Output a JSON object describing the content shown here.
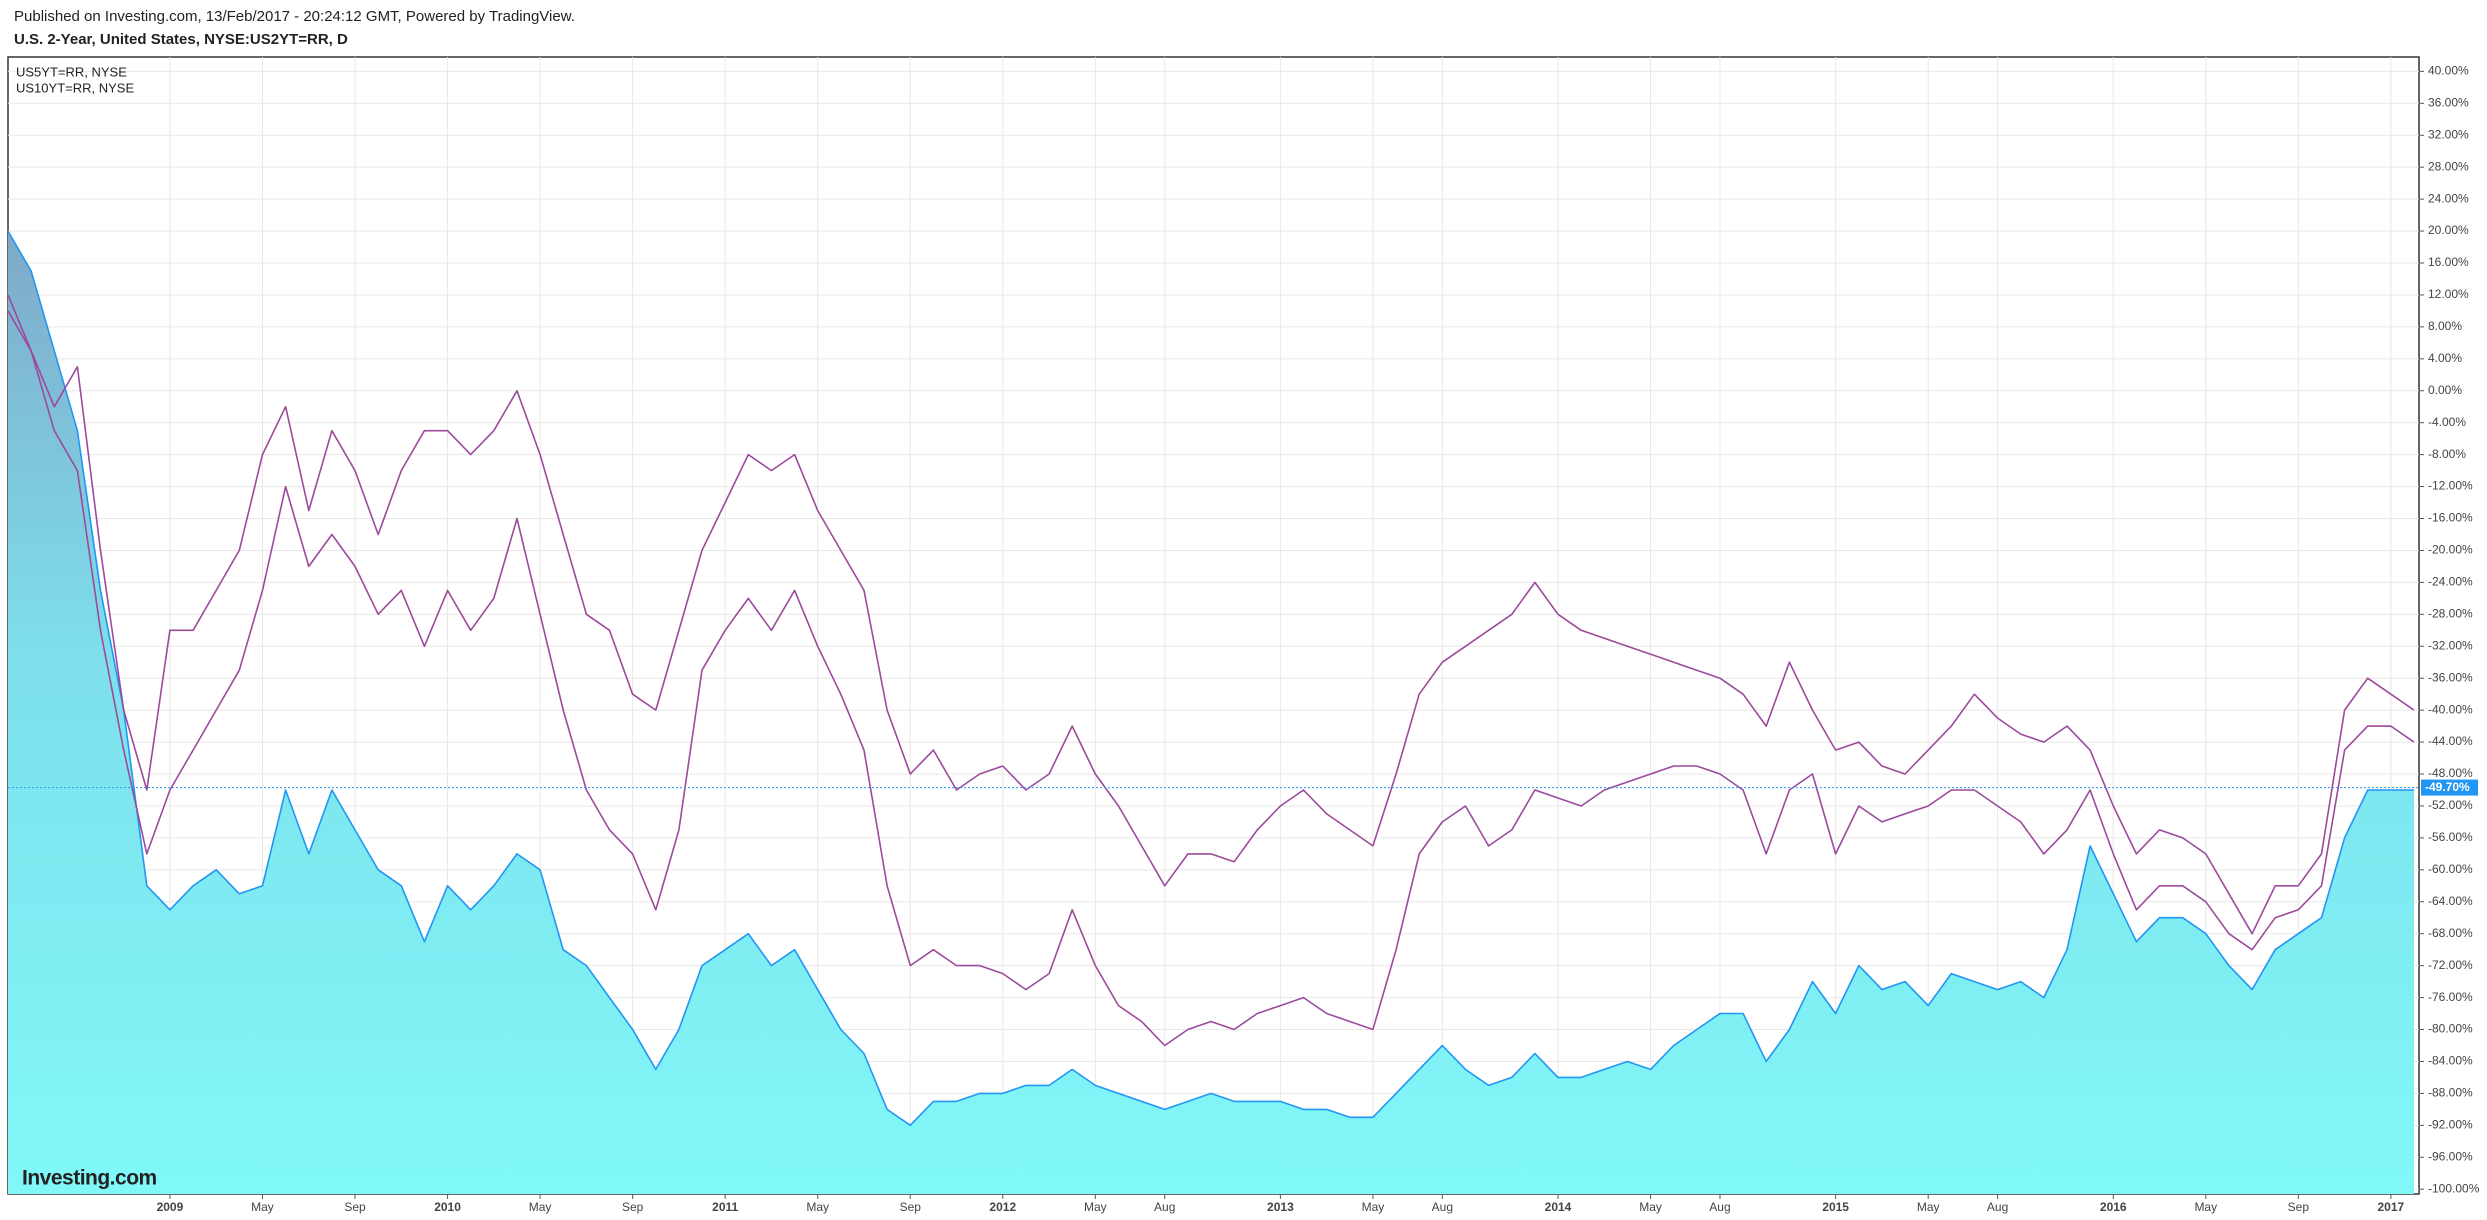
{
  "published": "Published on Investing.com, 13/Feb/2017 - 20:24:12 GMT, Powered by TradingView.",
  "logo": "Investing.com",
  "chart_data": {
    "type": "line",
    "title": "U.S. 2-Year, United States, NYSE:US2YT=RR, D",
    "x": [
      "2008-06",
      "2008-07",
      "2008-08",
      "2008-09",
      "2008-10",
      "2008-11",
      "2008-12",
      "2009-01",
      "2009-02",
      "2009-03",
      "2009-04",
      "2009-05",
      "2009-06",
      "2009-07",
      "2009-08",
      "2009-09",
      "2009-10",
      "2009-11",
      "2009-12",
      "2010-01",
      "2010-02",
      "2010-03",
      "2010-04",
      "2010-05",
      "2010-06",
      "2010-07",
      "2010-08",
      "2010-09",
      "2010-10",
      "2010-11",
      "2010-12",
      "2011-01",
      "2011-02",
      "2011-03",
      "2011-04",
      "2011-05",
      "2011-06",
      "2011-07",
      "2011-08",
      "2011-09",
      "2011-10",
      "2011-11",
      "2011-12",
      "2012-01",
      "2012-02",
      "2012-03",
      "2012-04",
      "2012-05",
      "2012-06",
      "2012-07",
      "2012-08",
      "2012-09",
      "2012-10",
      "2012-11",
      "2012-12",
      "2013-01",
      "2013-02",
      "2013-03",
      "2013-04",
      "2013-05",
      "2013-06",
      "2013-07",
      "2013-08",
      "2013-09",
      "2013-10",
      "2013-11",
      "2013-12",
      "2014-01",
      "2014-02",
      "2014-03",
      "2014-04",
      "2014-05",
      "2014-06",
      "2014-07",
      "2014-08",
      "2014-09",
      "2014-10",
      "2014-11",
      "2014-12",
      "2015-01",
      "2015-02",
      "2015-03",
      "2015-04",
      "2015-05",
      "2015-06",
      "2015-07",
      "2015-08",
      "2015-09",
      "2015-10",
      "2015-11",
      "2015-12",
      "2016-01",
      "2016-02",
      "2016-03",
      "2016-04",
      "2016-05",
      "2016-06",
      "2016-07",
      "2016-08",
      "2016-09",
      "2016-10",
      "2016-11",
      "2016-12",
      "2017-01",
      "2017-02"
    ],
    "series": [
      {
        "name": "U.S. 2-Year, United States, NYSE:US2YT=RR, D",
        "color": "#2196f3",
        "area": true,
        "values": [
          20,
          15,
          5,
          -5,
          -25,
          -40,
          -62,
          -65,
          -62,
          -60,
          -63,
          -62,
          -50,
          -58,
          -50,
          -55,
          -60,
          -62,
          -69,
          -62,
          -65,
          -62,
          -58,
          -60,
          -70,
          -72,
          -76,
          -80,
          -85,
          -80,
          -72,
          -70,
          -68,
          -72,
          -70,
          -75,
          -80,
          -83,
          -90,
          -92,
          -89,
          -89,
          -88,
          -88,
          -87,
          -87,
          -85,
          -87,
          -88,
          -89,
          -90,
          -89,
          -88,
          -89,
          -89,
          -89,
          -90,
          -90,
          -91,
          -91,
          -88,
          -85,
          -82,
          -85,
          -87,
          -86,
          -83,
          -86,
          -86,
          -85,
          -84,
          -85,
          -82,
          -80,
          -78,
          -78,
          -84,
          -80,
          -74,
          -78,
          -72,
          -75,
          -74,
          -77,
          -73,
          -74,
          -75,
          -74,
          -76,
          -70,
          -57,
          -63,
          -69,
          -66,
          -66,
          -68,
          -72,
          -75,
          -70,
          -68,
          -66,
          -56,
          -50,
          -50,
          -50
        ]
      },
      {
        "name": "US5YT=RR, NYSE",
        "color": "#9c4a9c",
        "values": [
          12,
          5,
          -5,
          -10,
          -30,
          -45,
          -58,
          -50,
          -45,
          -40,
          -35,
          -25,
          -12,
          -22,
          -18,
          -22,
          -28,
          -25,
          -32,
          -25,
          -30,
          -26,
          -16,
          -28,
          -40,
          -50,
          -55,
          -58,
          -65,
          -55,
          -35,
          -30,
          -26,
          -30,
          -25,
          -32,
          -38,
          -45,
          -62,
          -72,
          -70,
          -72,
          -72,
          -73,
          -75,
          -73,
          -65,
          -72,
          -77,
          -79,
          -82,
          -80,
          -79,
          -80,
          -78,
          -77,
          -76,
          -78,
          -79,
          -80,
          -70,
          -58,
          -54,
          -52,
          -57,
          -55,
          -50,
          -51,
          -52,
          -50,
          -49,
          -48,
          -47,
          -47,
          -48,
          -50,
          -58,
          -50,
          -48,
          -58,
          -52,
          -54,
          -53,
          -52,
          -50,
          -50,
          -52,
          -54,
          -58,
          -55,
          -50,
          -58,
          -65,
          -62,
          -62,
          -64,
          -68,
          -70,
          -66,
          -65,
          -62,
          -45,
          -42,
          -42,
          -44
        ]
      },
      {
        "name": "US10YT=RR, NYSE",
        "color": "#9c4a9c",
        "values": [
          10,
          5,
          -2,
          3,
          -20,
          -40,
          -50,
          -30,
          -30,
          -25,
          -20,
          -8,
          -2,
          -15,
          -5,
          -10,
          -18,
          -10,
          -5,
          -5,
          -8,
          -5,
          0,
          -8,
          -18,
          -28,
          -30,
          -38,
          -40,
          -30,
          -20,
          -14,
          -8,
          -10,
          -8,
          -15,
          -20,
          -25,
          -40,
          -48,
          -45,
          -50,
          -48,
          -47,
          -50,
          -48,
          -42,
          -48,
          -52,
          -57,
          -62,
          -58,
          -58,
          -59,
          -55,
          -52,
          -50,
          -53,
          -55,
          -57,
          -48,
          -38,
          -34,
          -32,
          -30,
          -28,
          -24,
          -28,
          -30,
          -31,
          -32,
          -33,
          -34,
          -35,
          -36,
          -38,
          -42,
          -34,
          -40,
          -45,
          -44,
          -47,
          -48,
          -45,
          -42,
          -38,
          -41,
          -43,
          -44,
          -42,
          -45,
          -52,
          -58,
          -55,
          -56,
          -58,
          -63,
          -68,
          -62,
          -62,
          -58,
          -40,
          -36,
          -38,
          -40
        ]
      }
    ],
    "last_value": {
      "value": -49.7,
      "label": "-49.70%"
    },
    "ylim": [
      -100.6,
      41.8
    ],
    "yticks": [
      {
        "value": 40,
        "label": "40.00%"
      },
      {
        "value": 36,
        "label": "36.00%"
      },
      {
        "value": 32,
        "label": "32.00%"
      },
      {
        "value": 28,
        "label": "28.00%"
      },
      {
        "value": 24,
        "label": "24.00%"
      },
      {
        "value": 20,
        "label": "20.00%"
      },
      {
        "value": 16,
        "label": "16.00%"
      },
      {
        "value": 12,
        "label": "12.00%"
      },
      {
        "value": 8,
        "label": "8.00%"
      },
      {
        "value": 4,
        "label": "4.00%"
      },
      {
        "value": 0,
        "label": "0.00%"
      },
      {
        "value": -4,
        "label": "-4.00%"
      },
      {
        "value": -8,
        "label": "-8.00%"
      },
      {
        "value": -12,
        "label": "-12.00%"
      },
      {
        "value": -16,
        "label": "-16.00%"
      },
      {
        "value": -20,
        "label": "-20.00%"
      },
      {
        "value": -24,
        "label": "-24.00%"
      },
      {
        "value": -28,
        "label": "-28.00%"
      },
      {
        "value": -32,
        "label": "-32.00%"
      },
      {
        "value": -36,
        "label": "-36.00%"
      },
      {
        "value": -40,
        "label": "-40.00%"
      },
      {
        "value": -44,
        "label": "-44.00%"
      },
      {
        "value": -48,
        "label": "-48.00%"
      },
      {
        "value": -52,
        "label": "-52.00%"
      },
      {
        "value": -56,
        "label": "-56.00%"
      },
      {
        "value": -60,
        "label": "-60.00%"
      },
      {
        "value": -64,
        "label": "-64.00%"
      },
      {
        "value": -68,
        "label": "-68.00%"
      },
      {
        "value": -72,
        "label": "-72.00%"
      },
      {
        "value": -76,
        "label": "-76.00%"
      },
      {
        "value": -80,
        "label": "-80.00%"
      },
      {
        "value": -84,
        "label": "-84.00%"
      },
      {
        "value": -88,
        "label": "-88.00%"
      },
      {
        "value": -92,
        "label": "-92.00%"
      },
      {
        "value": -96,
        "label": "-96.00%"
      },
      {
        "value": -100,
        "label": "-100.00%"
      }
    ],
    "xticks": [
      {
        "value": "2009-01",
        "label": "2009"
      },
      {
        "value": "2009-05",
        "label": "May"
      },
      {
        "value": "2009-09",
        "label": "Sep"
      },
      {
        "value": "2010-01",
        "label": "2010"
      },
      {
        "value": "2010-05",
        "label": "May"
      },
      {
        "value": "2010-09",
        "label": "Sep"
      },
      {
        "value": "2011-01",
        "label": "2011"
      },
      {
        "value": "2011-05",
        "label": "May"
      },
      {
        "value": "2011-09",
        "label": "Sep"
      },
      {
        "value": "2012-01",
        "label": "2012"
      },
      {
        "value": "2012-05",
        "label": "May"
      },
      {
        "value": "2012-08",
        "label": "Aug"
      },
      {
        "value": "2013-01",
        "label": "2013"
      },
      {
        "value": "2013-05",
        "label": "May"
      },
      {
        "value": "2013-08",
        "label": "Aug"
      },
      {
        "value": "2014-01",
        "label": "2014"
      },
      {
        "value": "2014-05",
        "label": "May"
      },
      {
        "value": "2014-08",
        "label": "Aug"
      },
      {
        "value": "2015-01",
        "label": "2015"
      },
      {
        "value": "2015-05",
        "label": "May"
      },
      {
        "value": "2015-08",
        "label": "Aug"
      },
      {
        "value": "2016-01",
        "label": "2016"
      },
      {
        "value": "2016-05",
        "label": "May"
      },
      {
        "value": "2016-09",
        "label": "Sep"
      },
      {
        "value": "2017-01",
        "label": "2017"
      }
    ],
    "grid": true
  }
}
